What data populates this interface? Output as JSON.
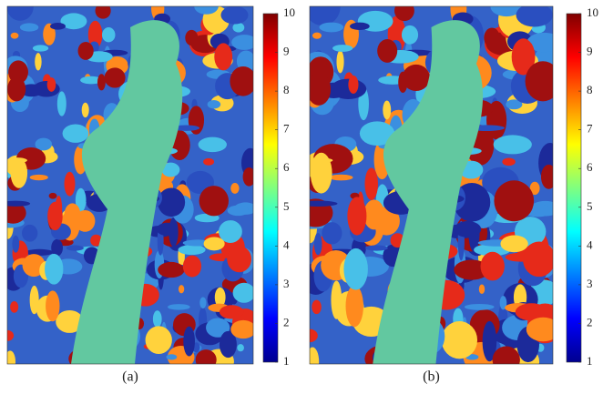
{
  "chart_data": [
    {
      "type": "image",
      "caption": "(a)",
      "colormap": "jet",
      "clim": [
        1,
        10
      ],
      "cticks": [
        1,
        2,
        3,
        4,
        5,
        6,
        7,
        8,
        9,
        10
      ]
    },
    {
      "type": "image",
      "caption": "(b)",
      "colormap": "jet",
      "clim": [
        1,
        10
      ],
      "cticks": [
        1,
        2,
        3,
        4,
        5,
        6,
        7,
        8,
        9,
        10
      ]
    }
  ]
}
